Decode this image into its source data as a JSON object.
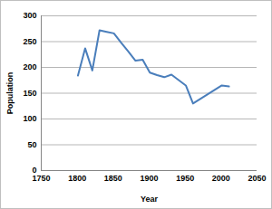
{
  "chart_data": {
    "type": "line",
    "x_label": "Year",
    "y_label": "Population",
    "x": [
      1801,
      1811,
      1821,
      1831,
      1841,
      1851,
      1861,
      1871,
      1881,
      1891,
      1901,
      1911,
      1921,
      1931,
      1951,
      1961,
      2001,
      2011
    ],
    "values": [
      184,
      237,
      194,
      272,
      269,
      266,
      248,
      231,
      213,
      215,
      190,
      185,
      181,
      186,
      165,
      130,
      165,
      163
    ],
    "color": "#4a7ebb",
    "xlim": [
      1750,
      2050
    ],
    "xticks": [
      1750,
      1800,
      1850,
      1900,
      1950,
      2000,
      2050
    ],
    "ylim": [
      0,
      300
    ],
    "yticks": [
      0,
      50,
      100,
      150,
      200,
      250,
      300
    ],
    "grid": true
  }
}
